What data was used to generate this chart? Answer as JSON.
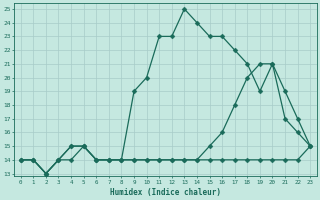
{
  "xlabel": "Humidex (Indice chaleur)",
  "xlim": [
    -0.5,
    23.5
  ],
  "ylim": [
    12.8,
    25.4
  ],
  "xticks": [
    0,
    1,
    2,
    3,
    4,
    5,
    6,
    7,
    8,
    9,
    10,
    11,
    12,
    13,
    14,
    15,
    16,
    17,
    18,
    19,
    20,
    21,
    22,
    23
  ],
  "yticks": [
    13,
    14,
    15,
    16,
    17,
    18,
    19,
    20,
    21,
    22,
    23,
    24,
    25
  ],
  "bg_color": "#c5e8e0",
  "line_color": "#1a6b5a",
  "grid_color": "#a8ccc8",
  "line1_x": [
    0,
    1,
    2,
    3,
    4,
    5,
    6,
    7,
    8,
    9,
    10,
    11,
    12,
    13,
    14,
    15,
    16,
    17,
    18,
    19,
    20,
    21,
    22,
    23
  ],
  "line1_y": [
    14,
    14,
    13,
    14,
    14,
    15,
    14,
    14,
    14,
    14,
    14,
    14,
    14,
    14,
    14,
    14,
    14,
    14,
    14,
    14,
    14,
    14,
    14,
    15
  ],
  "line2_x": [
    0,
    1,
    2,
    3,
    4,
    5,
    6,
    7,
    8,
    9,
    10,
    11,
    12,
    13,
    14,
    15,
    16,
    17,
    18,
    19,
    20,
    21,
    22,
    23
  ],
  "line2_y": [
    14,
    14,
    13,
    14,
    15,
    15,
    14,
    14,
    14,
    14,
    14,
    14,
    14,
    14,
    14,
    15,
    16,
    18,
    20,
    21,
    21,
    19,
    17,
    15
  ],
  "line3_x": [
    0,
    1,
    2,
    3,
    4,
    5,
    6,
    7,
    8,
    9,
    10,
    11,
    12,
    13,
    14,
    15,
    16,
    17,
    18,
    19,
    20,
    21,
    22,
    23
  ],
  "line3_y": [
    14,
    14,
    13,
    14,
    15,
    15,
    14,
    14,
    14,
    19,
    20,
    23,
    23,
    25,
    24,
    23,
    23,
    22,
    21,
    19,
    21,
    17,
    16,
    15
  ]
}
